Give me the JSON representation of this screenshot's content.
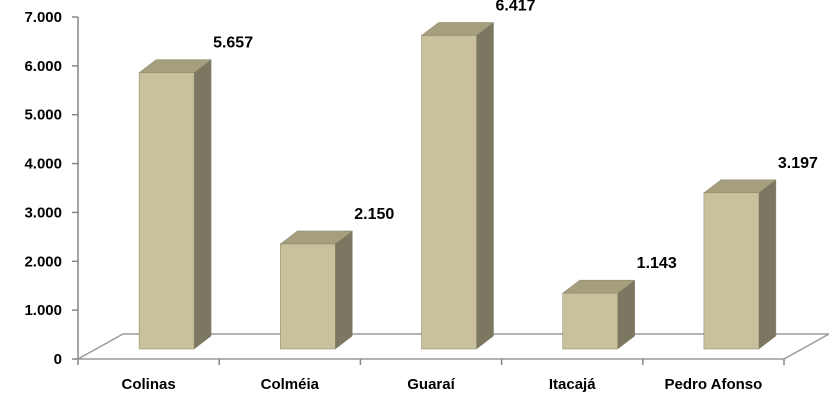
{
  "chart_data": {
    "type": "bar",
    "style": "3d-column",
    "categories": [
      "Colinas",
      "Colméia",
      "Guaraí",
      "Itacajá",
      "Pedro Afonso"
    ],
    "values": [
      5657,
      2150,
      6417,
      1143,
      3197
    ],
    "value_labels": [
      "5.657",
      "2.150",
      "6.417",
      "1.143",
      "3.197"
    ],
    "ylim": [
      0,
      7000
    ],
    "yticks": [
      0,
      1000,
      2000,
      3000,
      4000,
      5000,
      6000,
      7000
    ],
    "ytick_labels": [
      "0",
      "1.000",
      "2.000",
      "3.000",
      "4.000",
      "5.000",
      "6.000",
      "7.000"
    ],
    "grid": false,
    "legend": "none",
    "colors": {
      "bar_front": "#c8c19b",
      "bar_side": "#7b7760",
      "bar_top": "#a59f7e",
      "bar_edge": "#8a846a",
      "axis": "#878787",
      "floor": "#9a9a9a"
    }
  }
}
